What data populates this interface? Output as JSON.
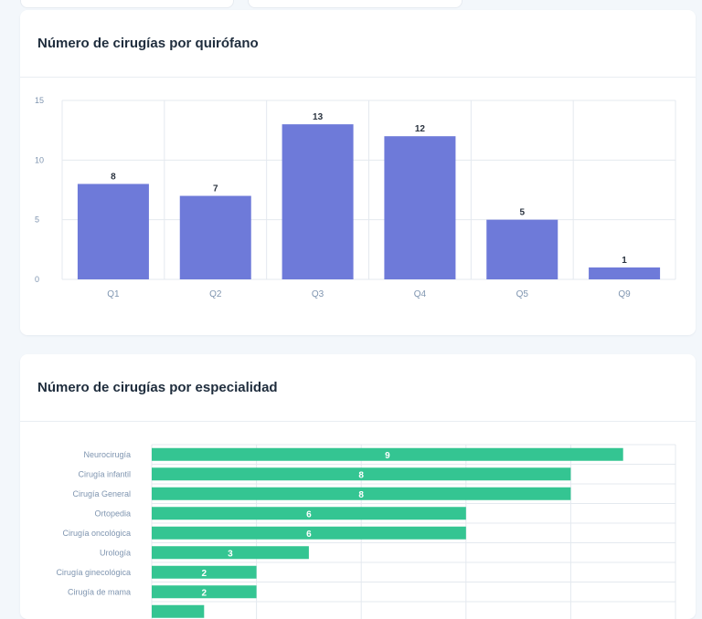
{
  "chart_data": [
    {
      "type": "bar",
      "title": "Número de cirugías por quirófano",
      "categories": [
        "Q1",
        "Q2",
        "Q3",
        "Q4",
        "Q5",
        "Q9"
      ],
      "values": [
        8,
        7,
        13,
        12,
        5,
        1
      ],
      "ylim": [
        0,
        15
      ],
      "yticks": [
        0,
        5,
        10,
        15
      ],
      "xlabel": "",
      "ylabel": "",
      "grid": true,
      "color": "#6e7ad9"
    },
    {
      "type": "bar",
      "orientation": "horizontal",
      "title": "Número de cirugías por especialidad",
      "categories": [
        "Neurocirugía",
        "Cirugía infantil",
        "Cirugía General",
        "Ortopedia",
        "Cirugía oncológica",
        "Urología",
        "Cirugía ginecológica",
        "Cirugía de mama"
      ],
      "values": [
        9,
        8,
        8,
        6,
        6,
        3,
        2,
        2
      ],
      "xlim": [
        0,
        10
      ],
      "grid": true,
      "color": "#34c592"
    }
  ],
  "colors": {
    "background": "#f3f7fb",
    "card": "#ffffff",
    "title": "#1f2d3d",
    "axis_label": "#7f95b0",
    "grid": "#e4e9ef"
  }
}
